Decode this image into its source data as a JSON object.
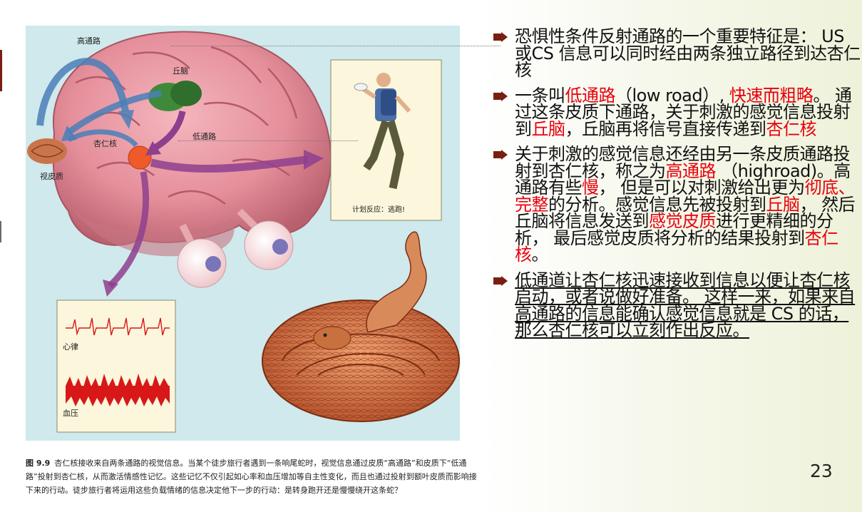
{
  "figure": {
    "labels": {
      "high_road": "高通路",
      "thalamus": "丘脑",
      "amygdala": "杏仁核",
      "low_road": "低通路",
      "visual_cortex": "视皮质",
      "plan_response": "计划反应：逃跑!",
      "heart_rate": "心律",
      "blood_pressure": "血压"
    },
    "caption_num": "图 9.9",
    "caption_text": "杏仁核接收来自两条通路的视觉信息。当某个徒步旅行者遇到一条响尾蛇时，视觉信息通过皮质“高通路”和皮质下“低通路”投射到杏仁核，从而激活情感性记忆。这些记忆不仅引起如心率和血压增加等自主性变化，而且也通过投射到额叶皮质而影响接下来的行动。徒步旅行者将运用这些负载情绪的信息决定他下一步的行动：是转身跑开还是慢慢绕开这条蛇？"
  },
  "bullets": {
    "b1": "恐惧性条件反射通路的一个重要特征是： US 或CS 信息可以同时经由两条独立路径到达杏仁核",
    "b2_1": "一条叫",
    "b2_2": "低通路",
    "b2_3": "（low road）, ",
    "b2_4": "快速而粗略",
    "b2_5": "。 通过这条皮质下通路，关于刺激的感觉信息投射到",
    "b2_6": "丘脑",
    "b2_7": "，丘脑再将信号直接传递到",
    "b2_8": "杏仁核",
    "b3_1": "关于刺激的感觉信息还经由另一条皮质通路投射到杏仁核，称之为",
    "b3_2": "高通路",
    "b3_3": " （highroad)。高通路有些",
    "b3_4": "慢",
    "b3_5": "， 但是可以对刺激给出更为",
    "b3_6": "彻底、完整",
    "b3_7": "的分析。感觉信息先被投射到",
    "b3_8": "丘脑",
    "b3_9": "， 然后丘脑将信息发送到",
    "b3_10": "感觉皮质",
    "b3_11": "进行更精细的分析， 最后感觉皮质将分析的结果投射到",
    "b3_12": "杏仁核",
    "b3_13": "。",
    "b4": "低通道让杏仁核迅速接收到信息以便让杏仁核启动，或者说做好准备。 这样一来，如果来自高通路的信息能确认感觉信息就是 CS 的话，那么杏仁核可以立刻作出反应。"
  },
  "page_number": "23",
  "colors": {
    "accent_red": "#e8000b",
    "bullet_marker": "#7a1e12",
    "figure_bg": "#cfe9ec"
  }
}
